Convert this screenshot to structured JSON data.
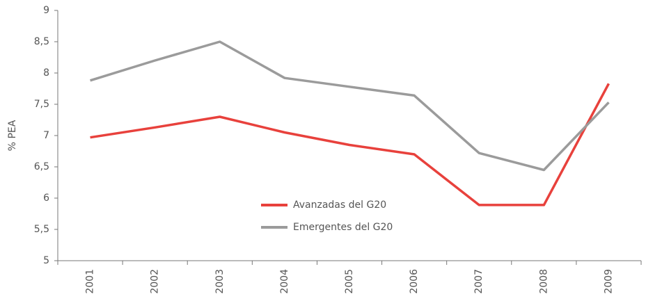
{
  "chart_data": {
    "type": "line",
    "y_label": "% PEA",
    "categories": [
      "2001",
      "2002",
      "2003",
      "2004",
      "2005",
      "2006",
      "2007",
      "2008",
      "2009"
    ],
    "series": [
      {
        "name": "Avanzadas del G20",
        "color": "#e8413c",
        "values": [
          6.97,
          7.13,
          7.3,
          7.05,
          6.85,
          6.7,
          5.89,
          5.89,
          7.83
        ]
      },
      {
        "name": "Emergentes del G20",
        "color": "#9b9b9b",
        "values": [
          7.88,
          8.2,
          8.5,
          7.92,
          7.78,
          7.64,
          6.72,
          6.45,
          7.53
        ]
      }
    ],
    "ylim": [
      5,
      9
    ],
    "yticks": [
      5,
      {
        "value": 5.5,
        "label": "5,5"
      },
      6,
      {
        "value": 6.5,
        "label": "6,5"
      },
      7,
      {
        "value": 7.5,
        "label": "7,5"
      },
      8,
      {
        "value": 8.5,
        "label": "8,5"
      },
      9
    ],
    "grid": false
  }
}
